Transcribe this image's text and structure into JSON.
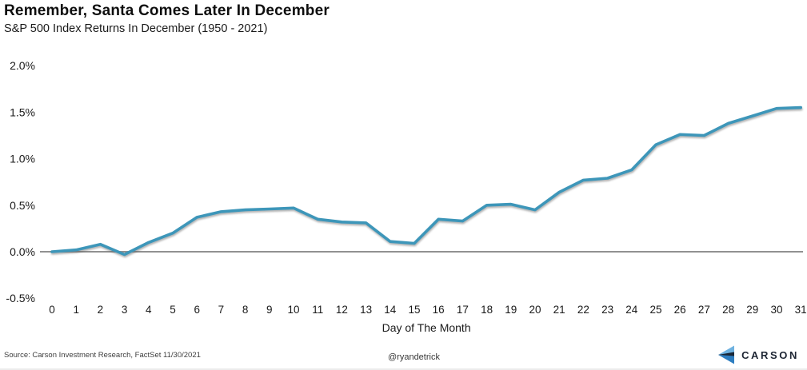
{
  "chart_data": {
    "type": "line",
    "title": "Remember, Santa Comes Later In December",
    "subtitle": "S&P 500 Index Returns In December (1950 - 2021)",
    "xlabel": "Day of The Month",
    "ylabel": "",
    "x": [
      0,
      1,
      2,
      3,
      4,
      5,
      6,
      7,
      8,
      9,
      10,
      11,
      12,
      13,
      14,
      15,
      16,
      17,
      18,
      19,
      20,
      21,
      22,
      23,
      24,
      25,
      26,
      27,
      28,
      29,
      30,
      31
    ],
    "values": [
      0.0,
      0.02,
      0.08,
      -0.03,
      0.1,
      0.2,
      0.37,
      0.43,
      0.45,
      0.46,
      0.47,
      0.35,
      0.32,
      0.31,
      0.11,
      0.09,
      0.35,
      0.33,
      0.5,
      0.51,
      0.45,
      0.64,
      0.77,
      0.79,
      0.88,
      1.15,
      1.26,
      1.25,
      1.38,
      1.46,
      1.54,
      1.55
    ],
    "ylim": [
      -0.5,
      2.0
    ],
    "yticks": [
      2.0,
      1.5,
      1.0,
      0.5,
      0.0,
      -0.5
    ],
    "ytick_labels": [
      "2.0%",
      "1.5%",
      "1.0%",
      "0.5%",
      "0.0%",
      "-0.5%"
    ],
    "grid": false,
    "legend": "none",
    "line_color": "#3e96b9",
    "zero_line_color": "#919191",
    "tick_text_color": "#1a1a1a"
  },
  "footer": {
    "source": "Source: Carson Investment Research, FactSet 11/30/2021",
    "handle": "@ryandetrick",
    "brand": {
      "name": "CARSON",
      "icon": "carson-chevron-icon",
      "icon_colors": [
        "#6fb2e0",
        "#1b2737",
        "#2d7dc0"
      ]
    }
  }
}
